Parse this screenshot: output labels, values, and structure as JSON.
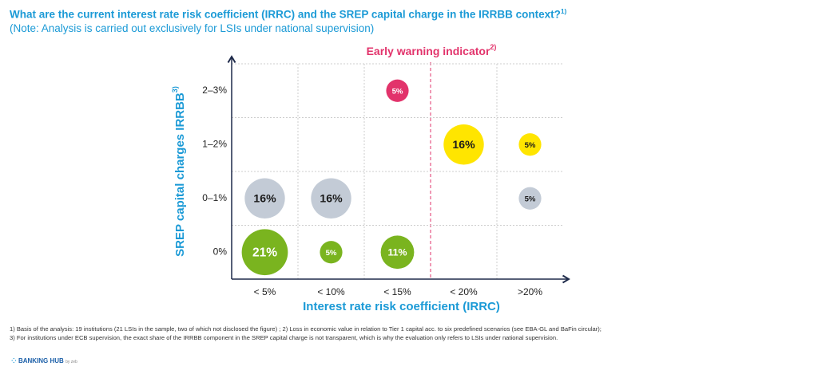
{
  "chart_data": {
    "type": "bubble",
    "title": "What are the current interest rate risk coefficient (IRRC) and the SREP capital charge in the IRRBB context?",
    "title_note": "1)",
    "subtitle": "(Note: Analysis is carried out exclusively for LSIs under national supervision)",
    "x_label": "Interest rate risk coefficient (IRRC)",
    "y_label": "SREP capital charges IRRBB",
    "y_label_note": "3)",
    "marker_label": "Early warning indicator",
    "marker_note": "2)",
    "categories": [
      "< 5%",
      "< 10%",
      "< 15%",
      "< 20%",
      ">20%"
    ],
    "y_categories": [
      "0%",
      "0–1%",
      "1–2%",
      "2–3%"
    ],
    "points": [
      {
        "x": "< 15%",
        "y": "2–3%",
        "value": 5,
        "value_label": "5%",
        "color": "#e2336b",
        "label_color": "#ffffff"
      },
      {
        "x": "< 20%",
        "y": "1–2%",
        "value": 16,
        "value_label": "16%",
        "color": "#ffe500",
        "label_color": "#1a1a1a"
      },
      {
        "x": ">20%",
        "y": "1–2%",
        "value": 5,
        "value_label": "5%",
        "color": "#ffe500",
        "label_color": "#1a1a1a"
      },
      {
        "x": "< 5%",
        "y": "0–1%",
        "value": 16,
        "value_label": "16%",
        "color": "#c3cbd6",
        "label_color": "#1a1a1a"
      },
      {
        "x": "< 10%",
        "y": "0–1%",
        "value": 16,
        "value_label": "16%",
        "color": "#c3cbd6",
        "label_color": "#1a1a1a"
      },
      {
        "x": ">20%",
        "y": "0–1%",
        "value": 5,
        "value_label": "5%",
        "color": "#c3cbd6",
        "label_color": "#1a1a1a"
      },
      {
        "x": "< 5%",
        "y": "0%",
        "value": 21,
        "value_label": "21%",
        "color": "#7ab41f",
        "label_color": "#ffffff"
      },
      {
        "x": "< 10%",
        "y": "0%",
        "value": 5,
        "value_label": "5%",
        "color": "#7ab41f",
        "label_color": "#ffffff"
      },
      {
        "x": "< 15%",
        "y": "0%",
        "value": 11,
        "value_label": "11%",
        "color": "#7ab41f",
        "label_color": "#ffffff"
      }
    ],
    "footnotes": [
      "1) Basis of the analysis: 19 institutions (21 LSIs in the sample, two of which not disclosed the figure) ; 2) Loss in economic value in relation to Tier 1 capital acc. to six predefined scenarios (see EBA-GL and BaFin circular);",
      "3) For institutions under ECB supervision, the exact share of the IRRBB component in the SREP capital charge is not transparent, which is why the evaluation only refers to LSIs under national supervision."
    ],
    "logo": "BANKING HUB",
    "logo_by": "by zeb"
  }
}
